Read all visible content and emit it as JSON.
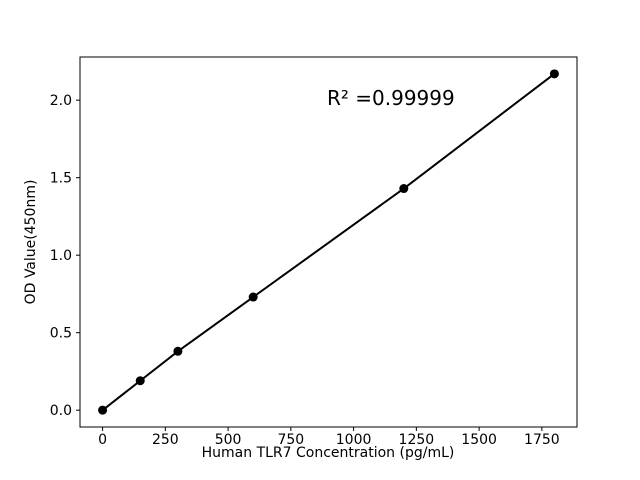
{
  "figure": {
    "background": "#ffffff",
    "foreground": "#000000"
  },
  "chart_data": {
    "type": "scatter",
    "title": "",
    "annotation": "R² =0.99999",
    "xlabel": "Human TLR7 Concentration (pg/mL)",
    "ylabel": "OD Value(450nm)",
    "x": [
      0,
      150,
      300,
      600,
      1200,
      1800
    ],
    "y": [
      0.0,
      0.19,
      0.38,
      0.73,
      1.43,
      2.17
    ],
    "xticks": [
      0,
      250,
      500,
      750,
      1000,
      1250,
      1500,
      1750
    ],
    "yticks": [
      0.0,
      0.5,
      1.0,
      1.5,
      2.0
    ],
    "xlim": [
      -90,
      1890
    ],
    "ylim": [
      -0.1085,
      2.2785
    ],
    "line": true,
    "marker": "circle",
    "line_color": "#000000",
    "marker_color": "#000000",
    "grid": false,
    "legend": "none"
  }
}
